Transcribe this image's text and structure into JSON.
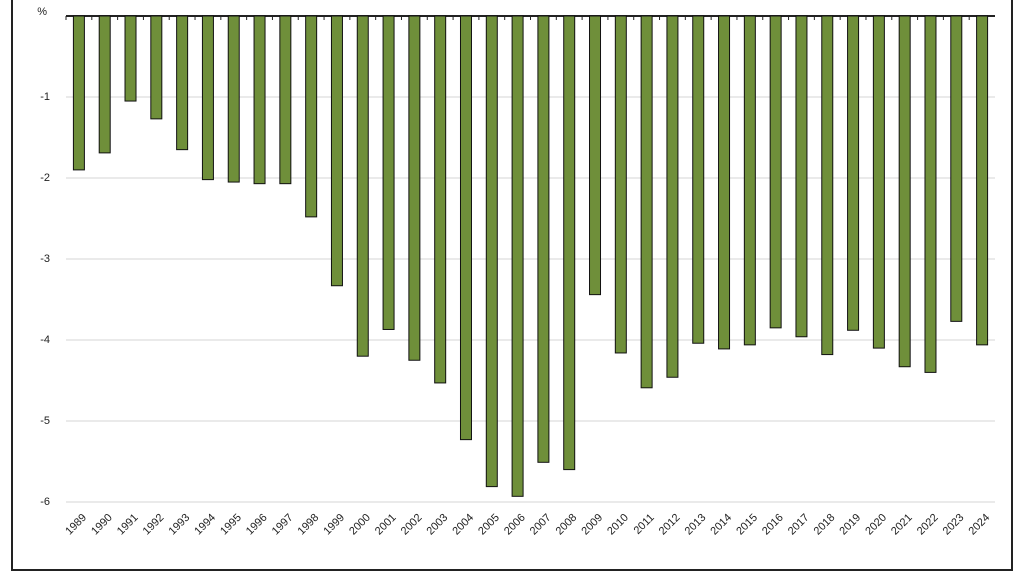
{
  "chart_data": {
    "type": "bar",
    "y_label": "%",
    "categories": [
      "1989",
      "1990",
      "1991",
      "1992",
      "1993",
      "1994",
      "1995",
      "1996",
      "1997",
      "1998",
      "1999",
      "2000",
      "2001",
      "2002",
      "2003",
      "2004",
      "2005",
      "2006",
      "2007",
      "2008",
      "2009",
      "2010",
      "2011",
      "2012",
      "2013",
      "2014",
      "2015",
      "2016",
      "2017",
      "2018",
      "2019",
      "2020",
      "2021",
      "2022",
      "2023",
      "2024"
    ],
    "values": [
      -1.9,
      -1.69,
      -1.05,
      -1.27,
      -1.65,
      -2.02,
      -2.05,
      -2.07,
      -2.07,
      -2.48,
      -3.33,
      -4.2,
      -3.87,
      -4.25,
      -4.53,
      -5.23,
      -5.81,
      -5.93,
      -5.51,
      -5.6,
      -3.44,
      -4.16,
      -4.59,
      -4.46,
      -4.04,
      -4.11,
      -4.06,
      -3.85,
      -3.96,
      -4.18,
      -3.88,
      -4.1,
      -4.33,
      -4.4,
      -3.77,
      -4.06
    ],
    "color": "#6f8f3a",
    "ylim": [
      -6,
      0
    ],
    "yticks": [
      -6,
      -5,
      -4,
      -3,
      -2,
      -1
    ],
    "grid": true
  }
}
